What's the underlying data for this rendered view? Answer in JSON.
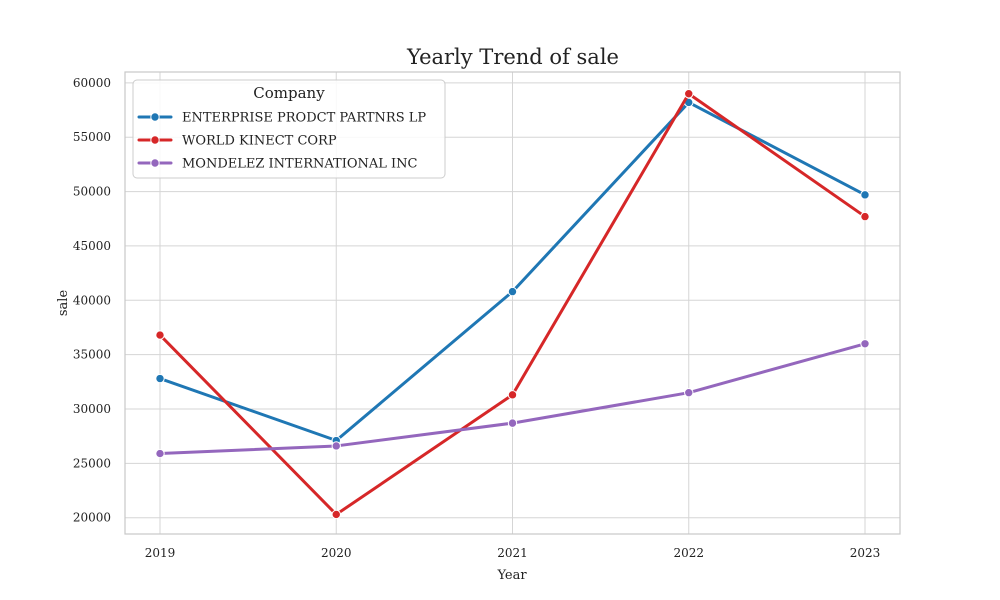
{
  "chart_data": {
    "type": "line",
    "title": "Yearly Trend of sale",
    "xlabel": "Year",
    "ylabel": "sale",
    "x": [
      "2019",
      "2020",
      "2021",
      "2022",
      "2023"
    ],
    "yticks": [
      20000,
      25000,
      30000,
      35000,
      40000,
      45000,
      50000,
      55000,
      60000
    ],
    "ylim": [
      18500,
      61000
    ],
    "grid": true,
    "legend": {
      "title": "Company",
      "placement": "top-left"
    },
    "series": [
      {
        "name": "ENTERPRISE PRODCT PARTNRS LP",
        "color": "#1f77b4",
        "values": [
          32800,
          27100,
          40800,
          58200,
          49700
        ]
      },
      {
        "name": "WORLD KINECT CORP",
        "color": "#d62728",
        "values": [
          36800,
          20300,
          31300,
          59000,
          47700
        ]
      },
      {
        "name": "MONDELEZ INTERNATIONAL INC",
        "color": "#9467bd",
        "values": [
          25900,
          26600,
          28700,
          31500,
          36000
        ]
      }
    ]
  }
}
